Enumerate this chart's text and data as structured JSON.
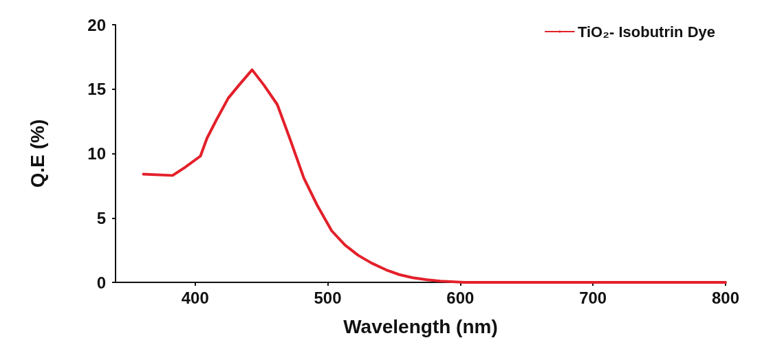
{
  "chart_data": {
    "type": "line",
    "xlabel": "Wavelength (nm)",
    "ylabel": "Q.E (%)",
    "xlim": [
      340,
      800
    ],
    "xticks": [
      400,
      500,
      600,
      700,
      800
    ],
    "ylim": [
      0,
      20
    ],
    "yticks": [
      0,
      5,
      10,
      15,
      20
    ],
    "grid": false,
    "legend": "top right",
    "marker": "none",
    "line_style": "solid",
    "series": [
      {
        "name": "TiO₂- Isobutrin Dye",
        "color": "#e3202a",
        "x": [
          361,
          383,
          392,
          404,
          409,
          416,
          425,
          433,
          443,
          452,
          462,
          472,
          482,
          492,
          503,
          513,
          523,
          533,
          544,
          554,
          564,
          575,
          585,
          603,
          650,
          700,
          750,
          800
        ],
        "values": [
          8.4,
          8.3,
          8.9,
          9.8,
          11.2,
          12.6,
          14.3,
          15.3,
          16.5,
          15.3,
          13.8,
          11.0,
          8.1,
          6.0,
          4.0,
          2.9,
          2.1,
          1.5,
          0.97,
          0.6,
          0.36,
          0.2,
          0.1,
          0,
          0,
          0,
          0,
          0
        ]
      }
    ]
  }
}
